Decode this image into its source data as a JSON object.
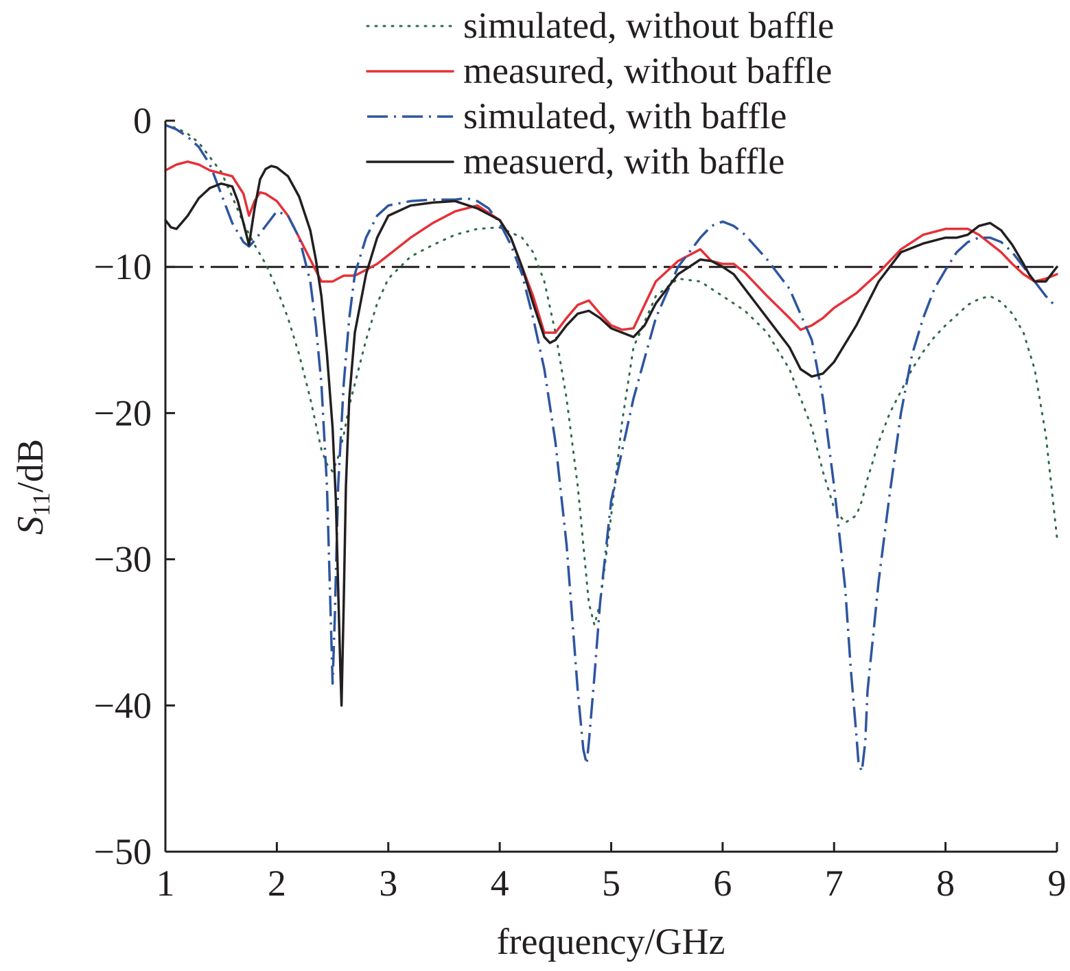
{
  "chart_data": {
    "type": "line",
    "title": "",
    "xlabel": "frequency/GHz",
    "ylabel": {
      "main": "S",
      "sub": "11",
      "suffix": "/dB"
    },
    "xlim": [
      1,
      9
    ],
    "ylim": [
      -50,
      0
    ],
    "xticks": [
      1,
      2,
      3,
      4,
      5,
      6,
      7,
      8,
      9
    ],
    "yticks": [
      0,
      -10,
      -20,
      -30,
      -40,
      -50
    ],
    "ytick_labels": [
      "0",
      "−10",
      "−20",
      "−30",
      "−40",
      "−50"
    ],
    "grid": false,
    "legend_position": "top-right",
    "reference_line": {
      "y": -10,
      "style": "dash-dot",
      "color": "#231f20"
    },
    "series": [
      {
        "name": "simulated, without baffle",
        "style": "dotted",
        "color": "#2e6b48",
        "x": [
          1.0,
          1.1,
          1.2,
          1.3,
          1.4,
          1.5,
          1.6,
          1.7,
          1.8,
          1.9,
          2.0,
          2.1,
          2.2,
          2.3,
          2.4,
          2.45,
          2.5,
          2.55,
          2.6,
          2.65,
          2.7,
          2.8,
          2.9,
          3.0,
          3.2,
          3.4,
          3.6,
          3.8,
          4.0,
          4.2,
          4.3,
          4.4,
          4.5,
          4.6,
          4.7,
          4.75,
          4.8,
          4.85,
          4.9,
          5.0,
          5.1,
          5.2,
          5.4,
          5.6,
          5.8,
          6.0,
          6.2,
          6.4,
          6.6,
          6.8,
          6.9,
          7.0,
          7.1,
          7.2,
          7.25,
          7.3,
          7.4,
          7.5,
          7.6,
          7.7,
          7.8,
          7.9,
          8.0,
          8.1,
          8.2,
          8.3,
          8.4,
          8.5,
          8.6,
          8.7,
          8.8,
          8.9,
          9.0
        ],
        "y": [
          -0.3,
          -0.5,
          -0.9,
          -1.5,
          -2.5,
          -3.5,
          -5.2,
          -7.0,
          -8.5,
          -9.8,
          -11.5,
          -13.5,
          -16.0,
          -19.0,
          -22.5,
          -23.5,
          -24.0,
          -23.0,
          -21.5,
          -19.5,
          -18.0,
          -15.0,
          -12.5,
          -10.8,
          -9.3,
          -8.5,
          -7.8,
          -7.4,
          -7.3,
          -8.0,
          -9.0,
          -11.0,
          -14.5,
          -19.0,
          -25.0,
          -29.0,
          -33.0,
          -34.5,
          -33.0,
          -27.0,
          -20.5,
          -15.5,
          -12.0,
          -10.8,
          -11.0,
          -12.0,
          -13.0,
          -14.5,
          -17.0,
          -21.0,
          -24.0,
          -26.5,
          -27.5,
          -27.0,
          -26.0,
          -24.5,
          -22.0,
          -20.0,
          -18.5,
          -17.0,
          -15.8,
          -14.8,
          -14.0,
          -13.3,
          -12.6,
          -12.2,
          -12.0,
          -12.4,
          -13.2,
          -14.5,
          -17.0,
          -21.5,
          -28.5
        ]
      },
      {
        "name": "measured, without baffle",
        "style": "solid",
        "color": "#e53137",
        "x": [
          1.0,
          1.1,
          1.2,
          1.3,
          1.4,
          1.5,
          1.6,
          1.7,
          1.75,
          1.8,
          1.85,
          1.9,
          2.0,
          2.1,
          2.2,
          2.3,
          2.4,
          2.5,
          2.6,
          2.7,
          2.8,
          2.9,
          3.0,
          3.2,
          3.4,
          3.6,
          3.8,
          4.0,
          4.1,
          4.2,
          4.3,
          4.4,
          4.5,
          4.6,
          4.7,
          4.8,
          4.9,
          5.0,
          5.1,
          5.2,
          5.3,
          5.4,
          5.6,
          5.8,
          5.9,
          6.0,
          6.1,
          6.2,
          6.4,
          6.6,
          6.7,
          6.8,
          6.9,
          7.0,
          7.2,
          7.4,
          7.6,
          7.8,
          8.0,
          8.2,
          8.3,
          8.4,
          8.5,
          8.6,
          8.7,
          8.8,
          8.9,
          9.0
        ],
        "y": [
          -3.4,
          -3.0,
          -2.8,
          -3.0,
          -3.4,
          -3.6,
          -3.8,
          -5.0,
          -6.5,
          -5.5,
          -4.9,
          -5.0,
          -5.5,
          -6.5,
          -8.0,
          -9.5,
          -11.0,
          -11.0,
          -10.6,
          -10.6,
          -10.2,
          -9.8,
          -9.2,
          -8.0,
          -7.0,
          -6.2,
          -5.8,
          -6.8,
          -8.0,
          -10.0,
          -12.0,
          -14.5,
          -14.5,
          -13.5,
          -12.6,
          -12.3,
          -13.2,
          -14.0,
          -14.3,
          -14.2,
          -12.6,
          -11.0,
          -9.6,
          -8.8,
          -9.6,
          -9.8,
          -9.8,
          -10.4,
          -12.0,
          -13.5,
          -14.3,
          -14.0,
          -13.5,
          -12.8,
          -11.8,
          -10.4,
          -8.8,
          -7.8,
          -7.4,
          -7.4,
          -7.8,
          -8.4,
          -9.0,
          -9.8,
          -10.5,
          -11.0,
          -10.8,
          -10.5
        ]
      },
      {
        "name": "simulated, with baffle",
        "style": "dash-dot",
        "color": "#2e55a0",
        "x": [
          1.0,
          1.1,
          1.2,
          1.3,
          1.4,
          1.5,
          1.6,
          1.7,
          1.75,
          1.8,
          1.9,
          2.0,
          2.1,
          2.2,
          2.3,
          2.35,
          2.4,
          2.45,
          2.48,
          2.5,
          2.52,
          2.55,
          2.6,
          2.65,
          2.7,
          2.8,
          2.9,
          3.0,
          3.2,
          3.4,
          3.6,
          3.7,
          3.8,
          3.9,
          4.0,
          4.1,
          4.2,
          4.3,
          4.4,
          4.5,
          4.6,
          4.65,
          4.7,
          4.75,
          4.78,
          4.8,
          4.85,
          4.9,
          5.0,
          5.2,
          5.4,
          5.6,
          5.8,
          5.9,
          6.0,
          6.1,
          6.2,
          6.4,
          6.6,
          6.8,
          6.9,
          7.0,
          7.1,
          7.15,
          7.2,
          7.22,
          7.25,
          7.28,
          7.3,
          7.4,
          7.5,
          7.6,
          7.7,
          7.8,
          7.9,
          8.0,
          8.1,
          8.2,
          8.3,
          8.4,
          8.5,
          8.6,
          8.7,
          8.8,
          8.9,
          9.0
        ],
        "y": [
          -0.3,
          -0.6,
          -1.1,
          -1.8,
          -3.0,
          -5.0,
          -7.0,
          -8.3,
          -8.6,
          -8.2,
          -7.2,
          -6.2,
          -6.5,
          -8.0,
          -11.0,
          -14.0,
          -18.0,
          -25.0,
          -33.0,
          -38.5,
          -34.0,
          -25.0,
          -18.0,
          -13.5,
          -10.5,
          -8.0,
          -6.5,
          -5.8,
          -5.5,
          -5.4,
          -5.4,
          -5.3,
          -5.5,
          -6.0,
          -7.0,
          -8.5,
          -10.5,
          -13.5,
          -17.0,
          -22.0,
          -29.0,
          -34.0,
          -39.0,
          -43.0,
          -44.0,
          -42.5,
          -38.0,
          -33.0,
          -26.0,
          -19.0,
          -13.5,
          -10.0,
          -8.0,
          -7.2,
          -6.9,
          -7.2,
          -7.8,
          -9.5,
          -11.5,
          -15.0,
          -19.0,
          -25.0,
          -32.0,
          -37.5,
          -42.0,
          -44.0,
          -44.5,
          -42.5,
          -39.0,
          -31.5,
          -25.5,
          -20.0,
          -16.0,
          -13.5,
          -11.5,
          -10.2,
          -9.0,
          -8.3,
          -8.0,
          -8.0,
          -8.3,
          -9.0,
          -10.0,
          -11.0,
          -12.0,
          -12.8
        ]
      },
      {
        "name": "measuerd, with baffle",
        "style": "solid",
        "color": "#231f20",
        "x": [
          1.0,
          1.05,
          1.1,
          1.2,
          1.3,
          1.4,
          1.5,
          1.6,
          1.65,
          1.7,
          1.75,
          1.8,
          1.85,
          1.9,
          1.95,
          2.0,
          2.1,
          2.2,
          2.3,
          2.35,
          2.4,
          2.45,
          2.5,
          2.53,
          2.55,
          2.57,
          2.58,
          2.6,
          2.62,
          2.65,
          2.7,
          2.8,
          2.9,
          3.0,
          3.2,
          3.4,
          3.6,
          3.8,
          4.0,
          4.1,
          4.2,
          4.3,
          4.4,
          4.45,
          4.5,
          4.6,
          4.7,
          4.8,
          4.9,
          5.0,
          5.1,
          5.2,
          5.3,
          5.4,
          5.6,
          5.8,
          5.9,
          6.0,
          6.1,
          6.2,
          6.4,
          6.6,
          6.7,
          6.8,
          6.9,
          7.0,
          7.2,
          7.4,
          7.6,
          7.8,
          8.0,
          8.1,
          8.2,
          8.3,
          8.4,
          8.5,
          8.6,
          8.7,
          8.75,
          8.8,
          8.85,
          8.9,
          9.0
        ],
        "y": [
          -6.8,
          -7.3,
          -7.4,
          -6.5,
          -5.3,
          -4.6,
          -4.3,
          -4.5,
          -5.5,
          -7.0,
          -8.5,
          -6.0,
          -4.0,
          -3.3,
          -3.1,
          -3.2,
          -3.8,
          -5.2,
          -7.5,
          -9.5,
          -12.0,
          -16.0,
          -21.0,
          -26.0,
          -32.0,
          -37.5,
          -40.0,
          -33.0,
          -25.0,
          -19.0,
          -14.5,
          -10.5,
          -8.0,
          -6.5,
          -5.8,
          -5.6,
          -5.5,
          -6.0,
          -6.8,
          -8.0,
          -10.0,
          -12.5,
          -14.8,
          -15.2,
          -15.0,
          -14.0,
          -13.2,
          -13.0,
          -13.5,
          -14.2,
          -14.5,
          -14.8,
          -14.0,
          -12.5,
          -10.5,
          -9.5,
          -9.6,
          -10.0,
          -10.5,
          -11.5,
          -13.5,
          -15.5,
          -17.0,
          -17.5,
          -17.3,
          -16.5,
          -14.0,
          -11.0,
          -9.0,
          -8.4,
          -8.0,
          -8.0,
          -7.8,
          -7.2,
          -7.0,
          -7.5,
          -8.5,
          -9.8,
          -10.5,
          -11.0,
          -11.0,
          -11.0,
          -10.0
        ]
      }
    ]
  }
}
